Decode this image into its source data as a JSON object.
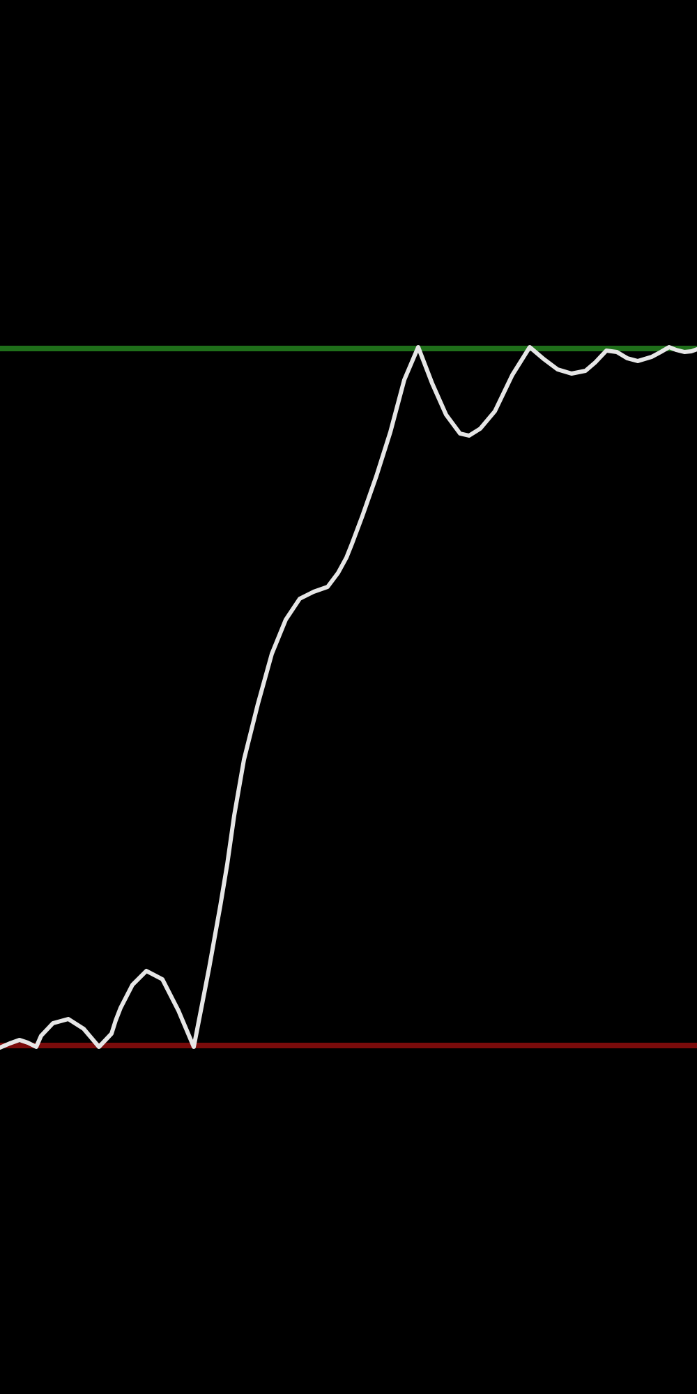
{
  "chart_data": {
    "type": "line",
    "title": "",
    "xlabel": "",
    "ylabel": "",
    "grid": false,
    "legend": "none",
    "xlim": [
      0,
      1
    ],
    "ylim": [
      -0.5,
      1.5
    ],
    "reference_lines": [
      {
        "value": 1,
        "color": "#1f6f1a"
      },
      {
        "value": 0,
        "color": "#7a0b0b"
      }
    ],
    "series": [
      {
        "color": "#e6e6e6",
        "x": [
          0,
          0.014,
          0.028,
          0.04,
          0.052,
          0.059,
          0.076,
          0.098,
          0.12,
          0.142,
          0.16,
          0.166,
          0.173,
          0.19,
          0.21,
          0.233,
          0.256,
          0.278,
          0.3,
          0.316,
          0.326,
          0.336,
          0.35,
          0.37,
          0.39,
          0.41,
          0.43,
          0.45,
          0.47,
          0.485,
          0.497,
          0.505,
          0.52,
          0.54,
          0.56,
          0.58,
          0.6,
          0.62,
          0.64,
          0.66,
          0.673,
          0.689,
          0.71,
          0.735,
          0.76,
          0.78,
          0.8,
          0.82,
          0.84,
          0.854,
          0.87,
          0.885,
          0.9,
          0.915,
          0.935,
          0.948,
          0.96,
          0.97,
          0.982,
          0.992,
          1.0
        ],
        "y": [
          -0.003,
          0.003,
          0.008,
          0.004,
          -0.002,
          0.014,
          0.032,
          0.038,
          0.024,
          -0.002,
          0.017,
          0.036,
          0.054,
          0.087,
          0.107,
          0.095,
          0.05,
          -0.002,
          0.111,
          0.2,
          0.26,
          0.33,
          0.41,
          0.49,
          0.562,
          0.611,
          0.641,
          0.651,
          0.658,
          0.678,
          0.7,
          0.72,
          0.76,
          0.817,
          0.88,
          0.955,
          1.002,
          0.95,
          0.905,
          0.878,
          0.875,
          0.885,
          0.91,
          0.962,
          1.002,
          0.985,
          0.97,
          0.964,
          0.968,
          0.98,
          0.997,
          0.995,
          0.986,
          0.982,
          0.988,
          0.995,
          1.002,
          0.998,
          0.995,
          0.996,
          0.999
        ]
      }
    ]
  }
}
